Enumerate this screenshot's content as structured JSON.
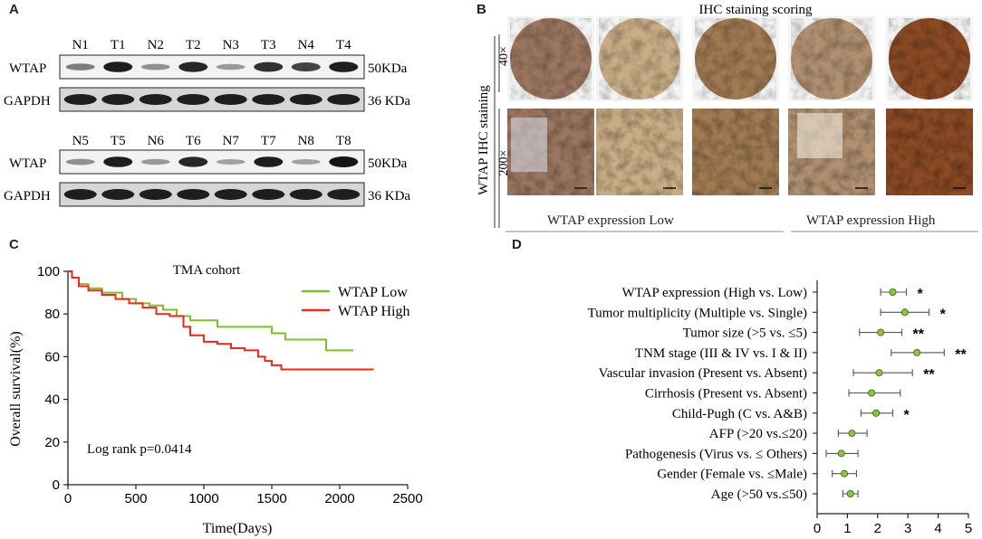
{
  "panels": {
    "a": "A",
    "b": "B",
    "c": "C",
    "d": "D"
  },
  "blot": {
    "top": {
      "lanes": [
        "N1",
        "T1",
        "N2",
        "T2",
        "N3",
        "T3",
        "N4",
        "T4"
      ],
      "wtap_intensity": [
        0.45,
        0.95,
        0.35,
        0.9,
        0.3,
        0.85,
        0.75,
        0.95
      ]
    },
    "bottom": {
      "lanes": [
        "N5",
        "T5",
        "N6",
        "T6",
        "N7",
        "T7",
        "N8",
        "T8"
      ],
      "wtap_intensity": [
        0.35,
        0.95,
        0.3,
        0.9,
        0.25,
        0.95,
        0.25,
        1.0
      ]
    },
    "rows": {
      "wtap": "WTAP",
      "gapdh": "GAPDH"
    },
    "sizes": {
      "wtap": "50KDa",
      "gapdh": "36 KDa"
    }
  },
  "ihc": {
    "title": "IHC staining scoring",
    "ylabel": "WTAP IHC staining",
    "mag_top": "40×",
    "mag_bottom": "200×",
    "group_low": "WTAP expression Low",
    "group_high": "WTAP expression High",
    "stain_colors": [
      "#9a7660",
      "#c9ad86",
      "#a07a52",
      "#b09070",
      "#8a4a24"
    ]
  },
  "km": {
    "subtitle": "TMA cohort",
    "legend_low": "WTAP Low",
    "legend_high": "WTAP High",
    "color_low": "#7fbf2a",
    "color_high": "#e8291c",
    "pvalue": "Log rank p=0.0414",
    "xlabel": "Time(Days)",
    "ylabel": "Overall survival(%)"
  },
  "chart_data": [
    {
      "type": "line",
      "title": "TMA cohort",
      "xlabel": "Time(Days)",
      "ylabel": "Overall survival(%)",
      "xlim": [
        0,
        2500
      ],
      "ylim": [
        0,
        100
      ],
      "xticks": [
        0,
        500,
        1000,
        1500,
        2000,
        2500
      ],
      "yticks": [
        0,
        20,
        40,
        60,
        80,
        100
      ],
      "series": [
        {
          "name": "WTAP Low",
          "x": [
            0,
            30,
            80,
            150,
            250,
            400,
            500,
            600,
            700,
            800,
            900,
            1000,
            1100,
            1300,
            1500,
            1600,
            1850,
            1900,
            2100
          ],
          "y": [
            100,
            97,
            94,
            92,
            90,
            87,
            85,
            84,
            82,
            79,
            77,
            77,
            74,
            74,
            71,
            68,
            68,
            63,
            63
          ]
        },
        {
          "name": "WTAP High",
          "x": [
            0,
            30,
            80,
            150,
            250,
            350,
            450,
            550,
            650,
            750,
            850,
            900,
            1000,
            1100,
            1200,
            1300,
            1400,
            1450,
            1500,
            1570,
            1700,
            1900,
            2250
          ],
          "y": [
            100,
            97,
            93,
            91,
            89,
            87,
            85,
            83,
            80,
            79,
            74,
            70,
            67,
            66,
            64,
            63,
            60,
            58,
            56,
            54,
            54,
            54,
            54
          ]
        }
      ]
    },
    {
      "type": "scatter",
      "subtype": "forest",
      "xlim": [
        0,
        5
      ],
      "xticks": [
        0,
        1,
        2,
        3,
        4,
        5
      ],
      "categories": [
        "WTAP expression (High vs. Low)",
        "Tumor multiplicity (Multiple vs. Single)",
        "Tumor size (>5 vs. ≤5)",
        "TNM stage (III & IV vs. I & II)",
        "Vascular invasion (Present vs. Absent)",
        "Cirrhosis (Present vs. Absent)",
        "Child-Pugh (C vs. A&B)",
        "AFP (>20 vs.≤20)",
        "Pathogenesis (Virus vs. ≤ Others)",
        "Gender (Female vs. ≤Male)",
        "Age (>50 vs.≤50)"
      ],
      "hr": [
        2.5,
        2.9,
        2.1,
        3.3,
        2.05,
        1.8,
        1.95,
        1.15,
        0.8,
        0.9,
        1.1
      ],
      "lower": [
        2.1,
        2.1,
        1.4,
        2.45,
        1.2,
        1.05,
        1.45,
        0.7,
        0.3,
        0.5,
        0.85
      ],
      "upper": [
        2.95,
        3.7,
        2.8,
        4.2,
        3.15,
        2.75,
        2.5,
        1.65,
        1.35,
        1.3,
        1.35
      ],
      "significance": [
        "*",
        "*",
        "**",
        "**",
        "**",
        "",
        "*",
        "",
        "",
        "",
        ""
      ]
    }
  ]
}
